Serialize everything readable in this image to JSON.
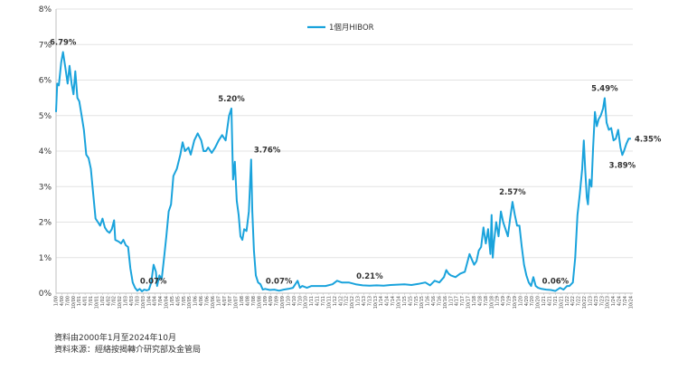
{
  "chart_data": {
    "type": "line",
    "title": "",
    "xlabel": "",
    "ylabel": "",
    "ylim": [
      0,
      8
    ],
    "yticks": [
      "0%",
      "1%",
      "2%",
      "3%",
      "4%",
      "5%",
      "6%",
      "7%",
      "8%"
    ],
    "legend": {
      "label": "1個月HIBOR",
      "position": "top-center"
    },
    "series": [
      {
        "name": "1個月HIBOR",
        "color": "#1aa3dc",
        "points": [
          [
            2000.0,
            5.1
          ],
          [
            2000.05,
            5.9
          ],
          [
            2000.12,
            5.85
          ],
          [
            2000.22,
            6.5
          ],
          [
            2000.3,
            6.79
          ],
          [
            2000.4,
            6.35
          ],
          [
            2000.5,
            5.9
          ],
          [
            2000.58,
            6.4
          ],
          [
            2000.67,
            5.9
          ],
          [
            2000.75,
            5.6
          ],
          [
            2000.83,
            6.25
          ],
          [
            2000.92,
            5.5
          ],
          [
            2001.0,
            5.4
          ],
          [
            2001.1,
            5.0
          ],
          [
            2001.2,
            4.6
          ],
          [
            2001.3,
            3.9
          ],
          [
            2001.4,
            3.8
          ],
          [
            2001.5,
            3.5
          ],
          [
            2001.6,
            2.8
          ],
          [
            2001.7,
            2.1
          ],
          [
            2001.8,
            2.0
          ],
          [
            2001.9,
            1.9
          ],
          [
            2002.0,
            2.1
          ],
          [
            2002.1,
            1.85
          ],
          [
            2002.2,
            1.75
          ],
          [
            2002.3,
            1.7
          ],
          [
            2002.4,
            1.8
          ],
          [
            2002.5,
            2.05
          ],
          [
            2002.55,
            1.5
          ],
          [
            2002.7,
            1.45
          ],
          [
            2002.8,
            1.4
          ],
          [
            2002.9,
            1.5
          ],
          [
            2003.0,
            1.35
          ],
          [
            2003.1,
            1.3
          ],
          [
            2003.2,
            0.7
          ],
          [
            2003.3,
            0.3
          ],
          [
            2003.4,
            0.15
          ],
          [
            2003.5,
            0.07
          ],
          [
            2003.6,
            0.12
          ],
          [
            2003.7,
            0.05
          ],
          [
            2003.8,
            0.1
          ],
          [
            2003.9,
            0.08
          ],
          [
            2004.0,
            0.1
          ],
          [
            2004.1,
            0.3
          ],
          [
            2004.2,
            0.8
          ],
          [
            2004.3,
            0.6
          ],
          [
            2004.35,
            0.2
          ],
          [
            2004.45,
            0.5
          ],
          [
            2004.55,
            0.4
          ],
          [
            2004.65,
            1.0
          ],
          [
            2004.75,
            1.6
          ],
          [
            2004.85,
            2.3
          ],
          [
            2004.95,
            2.5
          ],
          [
            2005.05,
            3.3
          ],
          [
            2005.2,
            3.5
          ],
          [
            2005.35,
            3.9
          ],
          [
            2005.45,
            4.25
          ],
          [
            2005.55,
            4.0
          ],
          [
            2005.7,
            4.1
          ],
          [
            2005.8,
            3.9
          ],
          [
            2005.95,
            4.3
          ],
          [
            2006.1,
            4.5
          ],
          [
            2006.25,
            4.3
          ],
          [
            2006.35,
            4.0
          ],
          [
            2006.45,
            4.0
          ],
          [
            2006.55,
            4.1
          ],
          [
            2006.7,
            3.95
          ],
          [
            2006.85,
            4.1
          ],
          [
            2007.0,
            4.3
          ],
          [
            2007.15,
            4.45
          ],
          [
            2007.3,
            4.3
          ],
          [
            2007.45,
            5.0
          ],
          [
            2007.55,
            5.2
          ],
          [
            2007.62,
            3.2
          ],
          [
            2007.7,
            3.7
          ],
          [
            2007.78,
            2.6
          ],
          [
            2007.86,
            2.2
          ],
          [
            2007.94,
            1.6
          ],
          [
            2008.02,
            1.5
          ],
          [
            2008.1,
            1.8
          ],
          [
            2008.2,
            1.75
          ],
          [
            2008.3,
            2.3
          ],
          [
            2008.4,
            3.76
          ],
          [
            2008.45,
            2.3
          ],
          [
            2008.52,
            1.2
          ],
          [
            2008.6,
            0.5
          ],
          [
            2008.7,
            0.3
          ],
          [
            2008.8,
            0.25
          ],
          [
            2008.9,
            0.1
          ],
          [
            2009.0,
            0.12
          ],
          [
            2009.2,
            0.09
          ],
          [
            2009.4,
            0.1
          ],
          [
            2009.6,
            0.07
          ],
          [
            2009.8,
            0.1
          ],
          [
            2010.0,
            0.12
          ],
          [
            2010.2,
            0.15
          ],
          [
            2010.4,
            0.35
          ],
          [
            2010.5,
            0.15
          ],
          [
            2010.6,
            0.2
          ],
          [
            2010.8,
            0.15
          ],
          [
            2011.0,
            0.2
          ],
          [
            2011.3,
            0.2
          ],
          [
            2011.6,
            0.2
          ],
          [
            2011.9,
            0.25
          ],
          [
            2012.1,
            0.35
          ],
          [
            2012.3,
            0.3
          ],
          [
            2012.6,
            0.3
          ],
          [
            2012.9,
            0.25
          ],
          [
            2013.2,
            0.22
          ],
          [
            2013.5,
            0.21
          ],
          [
            2013.8,
            0.22
          ],
          [
            2014.1,
            0.21
          ],
          [
            2014.4,
            0.23
          ],
          [
            2014.7,
            0.24
          ],
          [
            2015.0,
            0.25
          ],
          [
            2015.3,
            0.23
          ],
          [
            2015.6,
            0.26
          ],
          [
            2015.9,
            0.3
          ],
          [
            2016.1,
            0.22
          ],
          [
            2016.3,
            0.35
          ],
          [
            2016.5,
            0.3
          ],
          [
            2016.7,
            0.45
          ],
          [
            2016.8,
            0.65
          ],
          [
            2016.9,
            0.55
          ],
          [
            2017.0,
            0.5
          ],
          [
            2017.2,
            0.45
          ],
          [
            2017.4,
            0.55
          ],
          [
            2017.6,
            0.6
          ],
          [
            2017.8,
            1.1
          ],
          [
            2017.9,
            0.95
          ],
          [
            2018.0,
            0.8
          ],
          [
            2018.1,
            0.9
          ],
          [
            2018.2,
            1.2
          ],
          [
            2018.3,
            1.3
          ],
          [
            2018.4,
            1.85
          ],
          [
            2018.5,
            1.4
          ],
          [
            2018.6,
            1.8
          ],
          [
            2018.7,
            1.1
          ],
          [
            2018.75,
            2.2
          ],
          [
            2018.8,
            1.0
          ],
          [
            2018.85,
            1.4
          ],
          [
            2018.95,
            2.0
          ],
          [
            2019.05,
            1.6
          ],
          [
            2019.15,
            2.3
          ],
          [
            2019.25,
            2.0
          ],
          [
            2019.35,
            1.8
          ],
          [
            2019.45,
            1.6
          ],
          [
            2019.55,
            2.1
          ],
          [
            2019.65,
            2.57
          ],
          [
            2019.75,
            2.2
          ],
          [
            2019.85,
            1.9
          ],
          [
            2019.95,
            1.9
          ],
          [
            2020.05,
            1.3
          ],
          [
            2020.15,
            0.8
          ],
          [
            2020.25,
            0.5
          ],
          [
            2020.35,
            0.3
          ],
          [
            2020.45,
            0.2
          ],
          [
            2020.55,
            0.45
          ],
          [
            2020.65,
            0.2
          ],
          [
            2020.75,
            0.15
          ],
          [
            2020.9,
            0.12
          ],
          [
            2021.1,
            0.1
          ],
          [
            2021.3,
            0.09
          ],
          [
            2021.5,
            0.06
          ],
          [
            2021.7,
            0.15
          ],
          [
            2021.85,
            0.1
          ],
          [
            2022.0,
            0.2
          ],
          [
            2022.1,
            0.2
          ],
          [
            2022.25,
            0.3
          ],
          [
            2022.35,
            1.0
          ],
          [
            2022.45,
            2.2
          ],
          [
            2022.55,
            2.8
          ],
          [
            2022.65,
            3.5
          ],
          [
            2022.72,
            4.3
          ],
          [
            2022.78,
            3.5
          ],
          [
            2022.85,
            2.7
          ],
          [
            2022.9,
            2.5
          ],
          [
            2022.97,
            3.2
          ],
          [
            2023.05,
            3.0
          ],
          [
            2023.12,
            4.1
          ],
          [
            2023.2,
            5.1
          ],
          [
            2023.28,
            4.7
          ],
          [
            2023.36,
            4.9
          ],
          [
            2023.45,
            5.0
          ],
          [
            2023.55,
            5.2
          ],
          [
            2023.62,
            5.49
          ],
          [
            2023.7,
            4.8
          ],
          [
            2023.8,
            4.6
          ],
          [
            2023.9,
            4.65
          ],
          [
            2024.0,
            4.3
          ],
          [
            2024.1,
            4.35
          ],
          [
            2024.2,
            4.6
          ],
          [
            2024.3,
            4.1
          ],
          [
            2024.38,
            3.89
          ],
          [
            2024.45,
            4.0
          ],
          [
            2024.55,
            4.2
          ],
          [
            2024.65,
            4.35
          ],
          [
            2024.75,
            4.35
          ]
        ]
      }
    ],
    "annotations": [
      {
        "text": "6.79%",
        "x": 2000.3,
        "y": 6.79,
        "pos": "above"
      },
      {
        "text": "0.07%",
        "x": 2003.5,
        "y": 0.07,
        "pos": "above-right"
      },
      {
        "text": "5.20%",
        "x": 2007.55,
        "y": 5.2,
        "pos": "above"
      },
      {
        "text": "3.76%",
        "x": 2008.4,
        "y": 3.76,
        "pos": "above-right"
      },
      {
        "text": "0.07%",
        "x": 2009.6,
        "y": 0.07,
        "pos": "above"
      },
      {
        "text": "0.21%",
        "x": 2013.5,
        "y": 0.21,
        "pos": "above"
      },
      {
        "text": "2.57%",
        "x": 2019.65,
        "y": 2.57,
        "pos": "above"
      },
      {
        "text": "0.06%",
        "x": 2021.5,
        "y": 0.06,
        "pos": "above"
      },
      {
        "text": "5.49%",
        "x": 2023.62,
        "y": 5.49,
        "pos": "above"
      },
      {
        "text": "4.35%",
        "x": 2024.75,
        "y": 4.35,
        "pos": "right"
      },
      {
        "text": "3.89%",
        "x": 2024.38,
        "y": 3.89,
        "pos": "below"
      }
    ],
    "x_range": [
      2000.0,
      2024.83
    ],
    "x_tick_start_year": 2000,
    "x_tick_end_year": 2024,
    "x_tick_months": [
      "1",
      "4",
      "7",
      "10"
    ],
    "x_tick_last": "10/24"
  },
  "footnotes": {
    "line1": "資料由2000年1月至2024年10月",
    "line2": "資料來源：經絡按揭轉介研究部及金管局"
  }
}
